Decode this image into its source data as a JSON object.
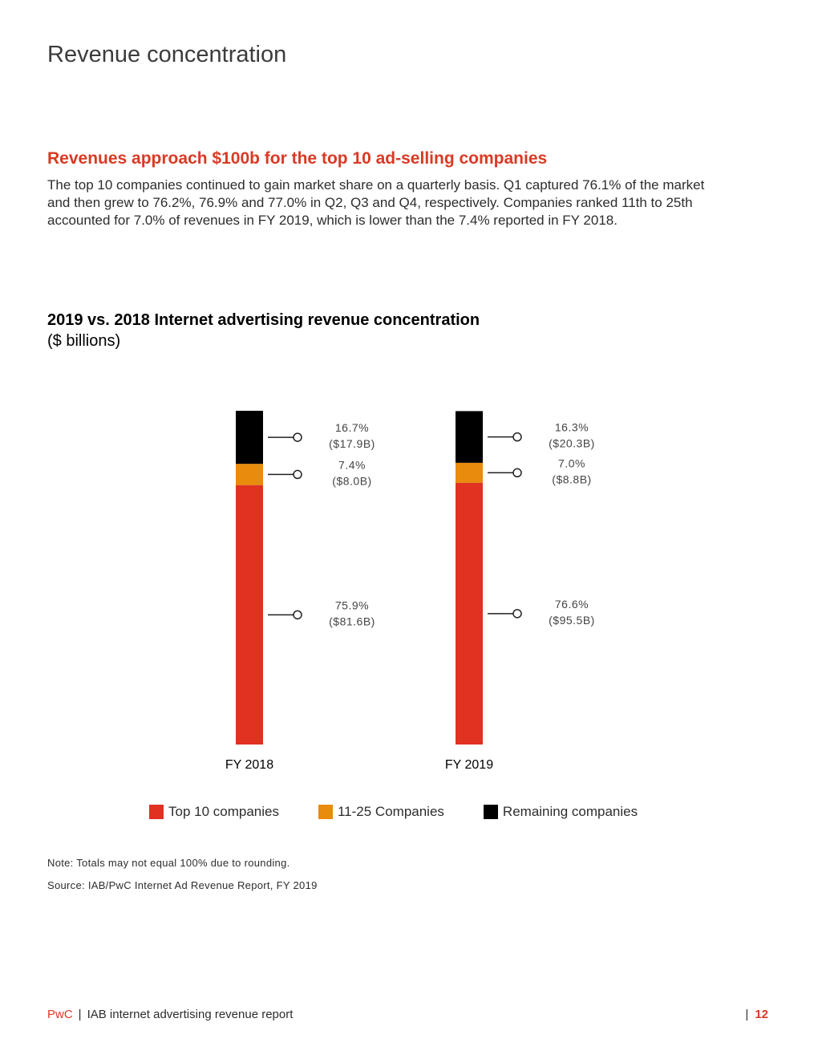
{
  "page": {
    "title": "Revenue concentration",
    "section_heading": "Revenues approach $100b for the top 10 ad-selling companies",
    "body": "The top 10 companies continued to gain market share on a quarterly basis. Q1 captured 76.1% of the market and then grew to 76.2%, 76.9% and 77.0% in Q2, Q3 and Q4, respectively. Companies ranked 11th to 25th accounted for 7.0% of revenues in FY 2019, which is lower than the 7.4% reported in FY 2018."
  },
  "chart_data": {
    "type": "bar",
    "stacked": true,
    "title": "2019 vs. 2018 Internet advertising revenue concentration",
    "subtitle": "($ billions)",
    "categories": [
      "FY 2018",
      "FY 2019"
    ],
    "series": [
      {
        "name": "Top 10 companies",
        "color": "#e03121",
        "percent": [
          75.9,
          76.6
        ],
        "values": [
          81.6,
          95.5
        ],
        "pct_labels": [
          "75.9%",
          "76.6%"
        ],
        "value_labels": [
          "($81.6B)",
          "($95.5B)"
        ]
      },
      {
        "name": "11-25 Companies",
        "color": "#e98b0c",
        "percent": [
          7.4,
          7.0
        ],
        "values": [
          8.0,
          8.8
        ],
        "pct_labels": [
          "7.4%",
          "7.0%"
        ],
        "value_labels": [
          "($8.0B)",
          "($8.8B)"
        ]
      },
      {
        "name": "Remaining companies",
        "color": "#000000",
        "percent": [
          16.7,
          16.3
        ],
        "values": [
          17.9,
          20.3
        ],
        "pct_labels": [
          "16.7%",
          "16.3%"
        ],
        "value_labels": [
          "($17.9B)",
          "($20.3B)"
        ]
      }
    ],
    "legend": "bottom"
  },
  "notes": {
    "note": "Note: Totals may not equal 100% due to rounding.",
    "source": "Source: IAB/PwC Internet Ad Revenue Report, FY 2019"
  },
  "footer": {
    "brand": "PwC",
    "separator": "|",
    "report": "IAB internet advertising revenue report",
    "page_separator": "|",
    "page_number": "12"
  }
}
